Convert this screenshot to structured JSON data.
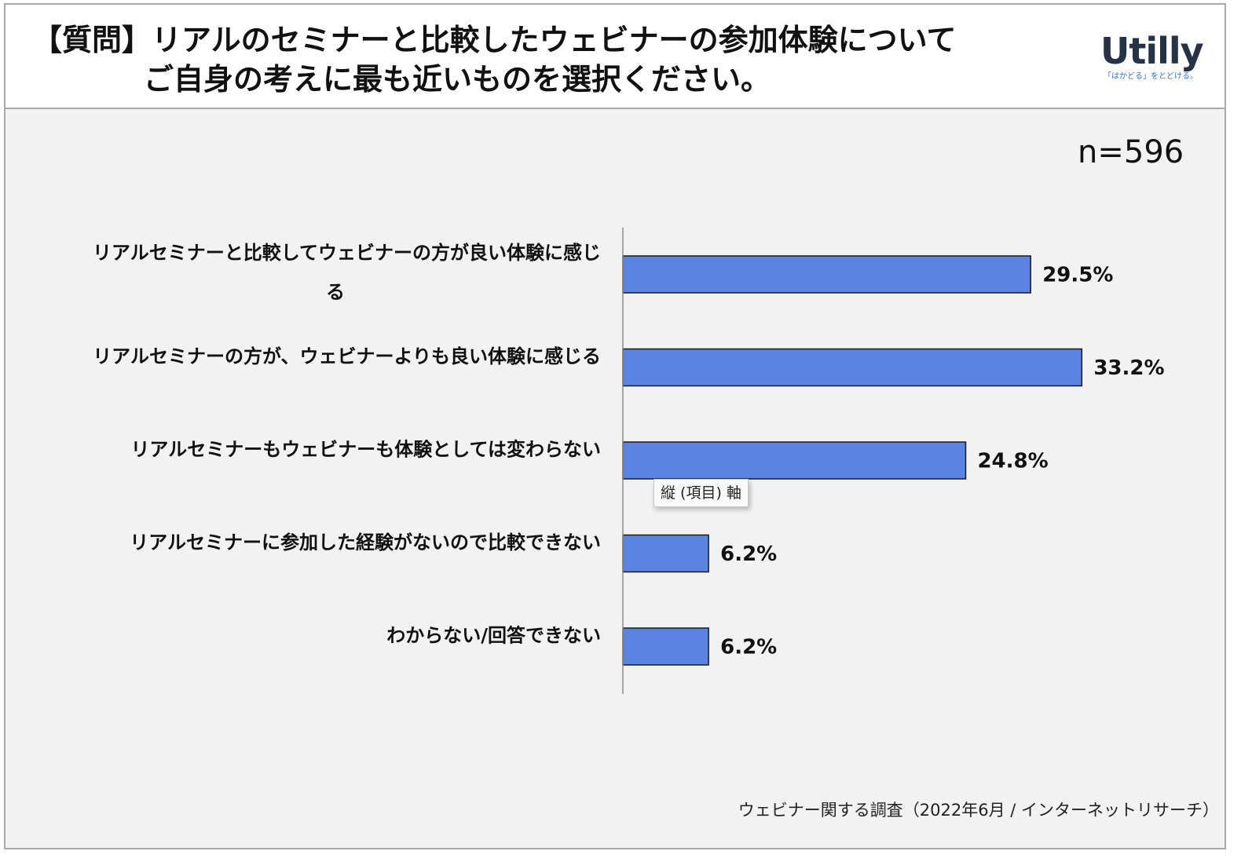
{
  "header": {
    "title_line1": "【質問】リアルのセミナーと比較したウェビナーの参加体験について",
    "title_line2": "ご自身の考えに最も近いものを選択ください。",
    "logo_text": "Utilly",
    "logo_tagline": "「はかどる」をとどける。"
  },
  "sample_size": "n=596",
  "tooltip": "縦 (項目) 軸",
  "source": "ウェビナー関する調査（2022年6月 / インターネットリサーチ）",
  "colors": {
    "bar": "#5b84e2",
    "bar_border": "#1a1a1a",
    "background": "#f2f2f2",
    "header": "#ffffff",
    "logo": "#263345",
    "logo_accent": "#2f6fd6"
  },
  "chart_data": {
    "type": "bar",
    "orientation": "horizontal",
    "categories": [
      "リアルセミナーと比較してウェビナーの方が良い体験に感じる",
      "リアルセミナーの方が、ウェビナーよりも良い体験に感じる",
      "リアルセミナーもウェビナーも体験としては変わらない",
      "リアルセミナーに参加した経験がないので比較できない",
      "わからない/回答できない"
    ],
    "category_label_lines": [
      [
        "リアルセミナーと比較してウェビナーの方が良い体験に感じ",
        "る"
      ],
      [
        "リアルセミナーの方が、ウェビナーよりも良い体験に感じる"
      ],
      [
        "リアルセミナーもウェビナーも体験としては変わらない"
      ],
      [
        "リアルセミナーに参加した経験がないので比較できない"
      ],
      [
        "わからない/回答できない"
      ]
    ],
    "values": [
      29.5,
      33.2,
      24.8,
      6.2,
      6.2
    ],
    "value_labels": [
      "29.5%",
      "33.2%",
      "24.8%",
      "6.2%",
      "6.2%"
    ],
    "unit": "%",
    "xlim": [
      0,
      40
    ],
    "grid": false,
    "legend": "none"
  }
}
